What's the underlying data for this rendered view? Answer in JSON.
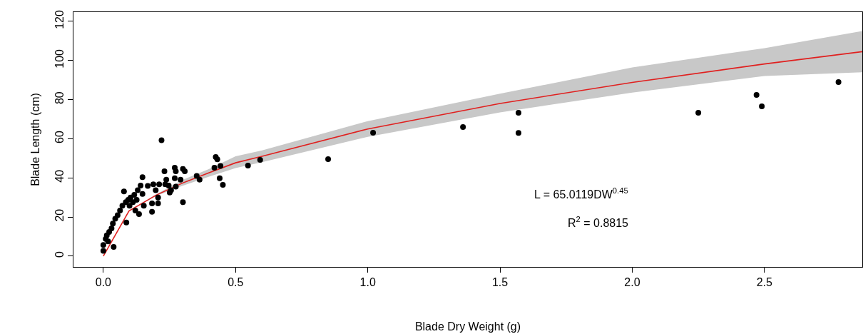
{
  "chart_data": {
    "type": "scatter",
    "xlabel": "Blade Dry Weight (g)",
    "ylabel": "Blade Length (cm)",
    "xlim": [
      -0.113,
      2.87
    ],
    "ylim": [
      -5.5,
      124.7
    ],
    "xticks": [
      {
        "value": 0,
        "label": "0.0"
      },
      0.5,
      {
        "value": 1,
        "label": "1.0"
      },
      1.5,
      {
        "value": 2,
        "label": "2.0"
      },
      2.5
    ],
    "yticks": [
      0,
      20,
      40,
      60,
      80,
      100,
      120
    ],
    "grid": false,
    "marker": "circle",
    "annotations": [
      "L = 65.0119DW$^{0.45}$",
      "R$^{2}$ = 0.8815"
    ],
    "series": [
      {
        "color": "#000000",
        "x": [
          0.85,
          1.02,
          1.36,
          1.57,
          1.57,
          2.25,
          2.47,
          2.49,
          2.78,
          0.547,
          0.593,
          0.22,
          0.425,
          0.431,
          0.42,
          0.443,
          0.44,
          0.452,
          0.364,
          0.353,
          0.301,
          0.308,
          0.301,
          0.27,
          0.274,
          0.231,
          0.238,
          0.27,
          0.292,
          0.247,
          0.256,
          0.274,
          0.211,
          0.189,
          0.168,
          0.198,
          0.207,
          0.184,
          0.184,
          0.148,
          0.141,
          0.13,
          0.148,
          0.153,
          0.135,
          0.078,
          0.117,
          0.103,
          0.094,
          0.085,
          0.126,
          0.112,
          0.072,
          0.099,
          0.121,
          0.063,
          0.054,
          0.087,
          0.045,
          0.036,
          0.031,
          0.022,
          0.013,
          0.009,
          0.0,
          0.0,
          0.039,
          0.018,
          0.251,
          0.207,
          0.234
        ],
        "values": [
          49.6,
          63.1,
          66,
          73.3,
          63,
          73.3,
          82.4,
          76.6,
          89,
          46.3,
          49.2,
          59.2,
          50.7,
          49.5,
          45.2,
          46.1,
          39.8,
          36.4,
          39.1,
          41,
          27.6,
          43.4,
          44.6,
          45.2,
          43.4,
          43.4,
          39.1,
          39.8,
          39.1,
          36.1,
          33.7,
          35.5,
          36.7,
          36.7,
          35.9,
          33.7,
          30,
          27,
          22.7,
          40.4,
          36.1,
          33.7,
          31.8,
          25.8,
          21.5,
          33.1,
          31.3,
          30,
          28.8,
          27.6,
          28.8,
          27.6,
          25.8,
          25.8,
          23.3,
          23.3,
          20.9,
          17.2,
          19.1,
          16.7,
          14.2,
          12.4,
          10.6,
          8.8,
          5.7,
          2.7,
          4.7,
          7.5,
          32.5,
          27,
          36.7
        ]
      },
      {
        "type": "line",
        "color": "#e0201f",
        "marker": "none",
        "line_style": "solid",
        "x": [
          0,
          0.097,
          0.2,
          0.3,
          0.4,
          0.5,
          0.6,
          1.0,
          1.5,
          2.0,
          2.5,
          2.87
        ],
        "values": [
          0,
          23.1,
          31.2,
          37.4,
          42.6,
          47.7,
          51,
          65,
          78,
          88.8,
          98.2,
          104.5
        ],
        "lower": [
          0,
          23.1,
          30.8,
          36,
          40.6,
          45,
          48,
          61,
          73.5,
          83.6,
          92.1,
          94
        ],
        "upper": [
          0,
          23.1,
          31.6,
          39,
          44.6,
          51,
          54,
          69,
          83,
          96.4,
          106.3,
          115
        ]
      }
    ]
  }
}
